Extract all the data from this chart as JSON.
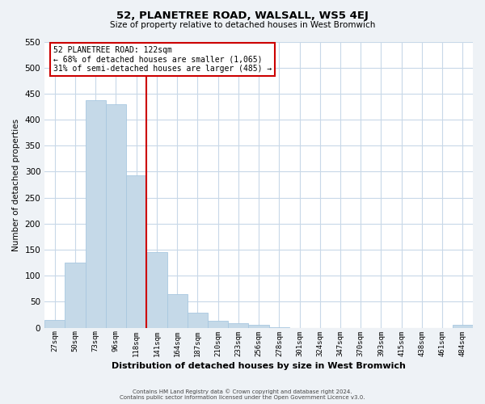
{
  "title": "52, PLANETREE ROAD, WALSALL, WS5 4EJ",
  "subtitle": "Size of property relative to detached houses in West Bromwich",
  "bar_labels": [
    "27sqm",
    "50sqm",
    "73sqm",
    "96sqm",
    "118sqm",
    "141sqm",
    "164sqm",
    "187sqm",
    "210sqm",
    "233sqm",
    "256sqm",
    "278sqm",
    "301sqm",
    "324sqm",
    "347sqm",
    "370sqm",
    "393sqm",
    "415sqm",
    "438sqm",
    "461sqm",
    "484sqm"
  ],
  "bar_values": [
    15,
    125,
    437,
    430,
    293,
    146,
    65,
    29,
    13,
    8,
    5,
    1,
    0,
    0,
    0,
    0,
    0,
    0,
    0,
    0,
    5
  ],
  "bar_color": "#c5d9e8",
  "bar_edgecolor": "#a8c8e0",
  "vline_x_index": 4,
  "vline_color": "#cc0000",
  "ylabel": "Number of detached properties",
  "xlabel": "Distribution of detached houses by size in West Bromwich",
  "ylim": [
    0,
    550
  ],
  "yticks": [
    0,
    50,
    100,
    150,
    200,
    250,
    300,
    350,
    400,
    450,
    500,
    550
  ],
  "annotation_title": "52 PLANETREE ROAD: 122sqm",
  "annotation_line1": "← 68% of detached houses are smaller (1,065)",
  "annotation_line2": "31% of semi-detached houses are larger (485) →",
  "annotation_box_edgecolor": "#cc0000",
  "footer1": "Contains HM Land Registry data © Crown copyright and database right 2024.",
  "footer2": "Contains public sector information licensed under the Open Government Licence v3.0.",
  "background_color": "#eef2f6",
  "plot_bg_color": "#ffffff",
  "grid_color": "#c8d8e8"
}
